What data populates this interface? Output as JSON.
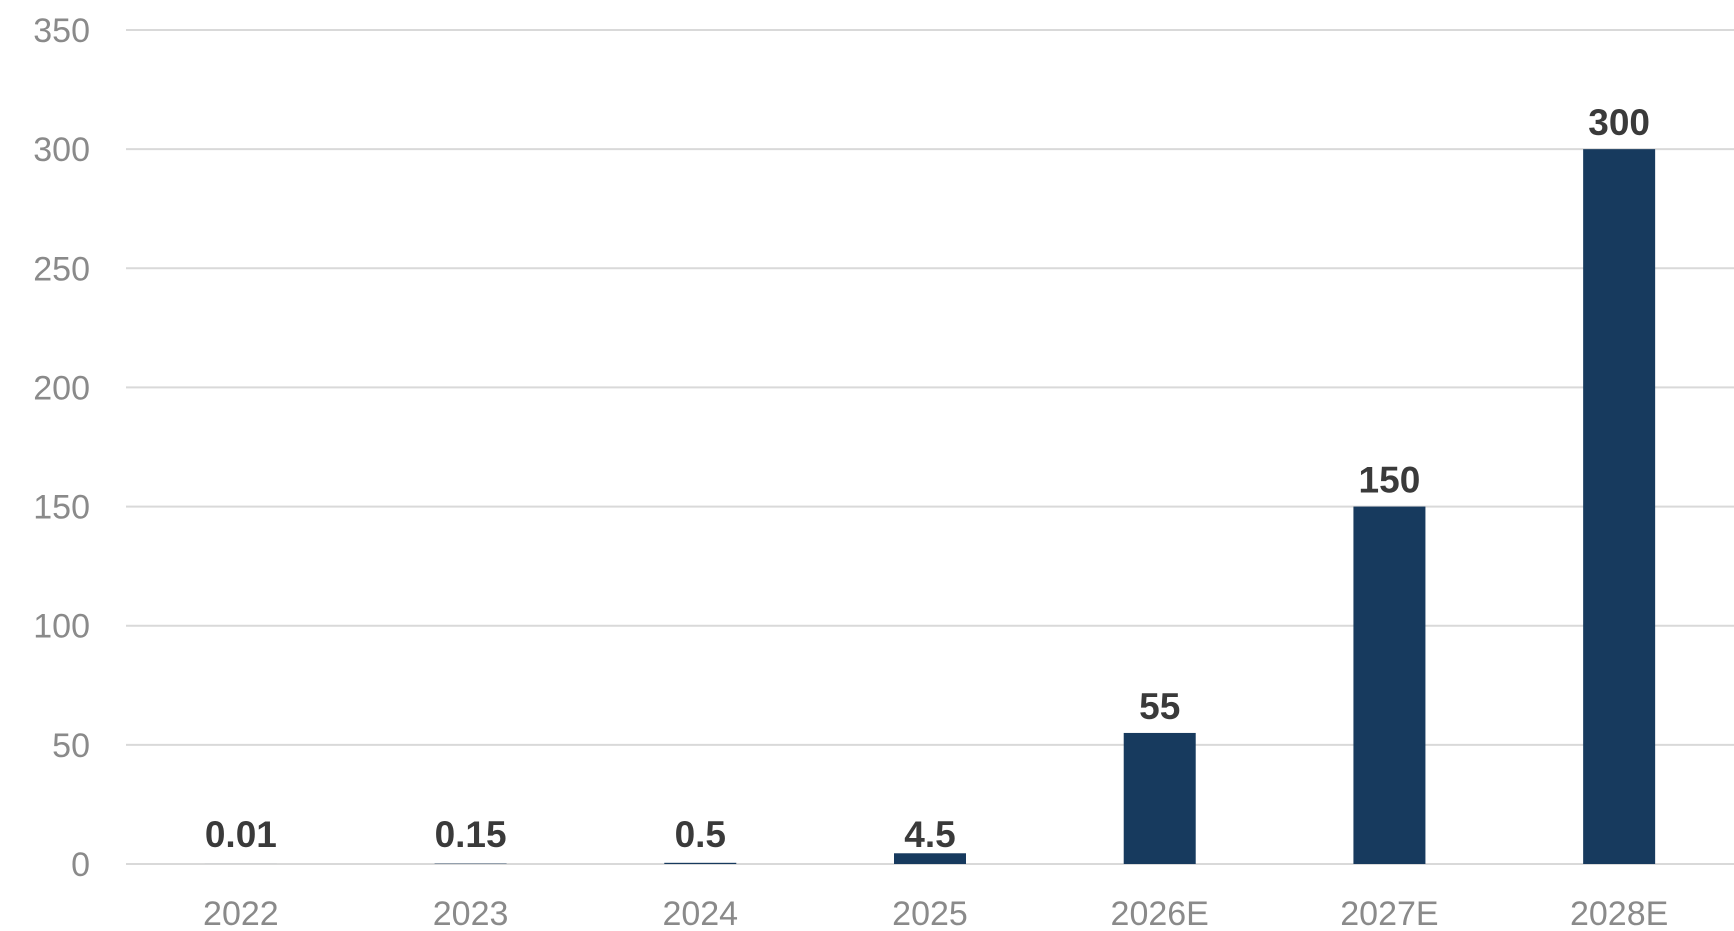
{
  "chart_data": {
    "type": "bar",
    "title": "",
    "xlabel": "",
    "ylabel": "",
    "categories": [
      "2022",
      "2023",
      "2024",
      "2025",
      "2026E",
      "2027E",
      "2028E"
    ],
    "series": [
      {
        "values": [
          0.01,
          0.15,
          0.5,
          4.5,
          55,
          150,
          300
        ]
      }
    ],
    "data_labels": [
      "0.01",
      "0.15",
      "0.5",
      "4.5",
      "55",
      "150",
      "300"
    ],
    "y_ticks": [
      "0",
      "50",
      "100",
      "150",
      "200",
      "250",
      "300",
      "350"
    ],
    "ylim": [
      0,
      350
    ],
    "grid": true,
    "legend": "none",
    "colors": {
      "bar": "#173a5e",
      "grid": "#d9d9d9",
      "tick_text": "#8a8a8a",
      "label_text": "#3a3a3a"
    }
  }
}
